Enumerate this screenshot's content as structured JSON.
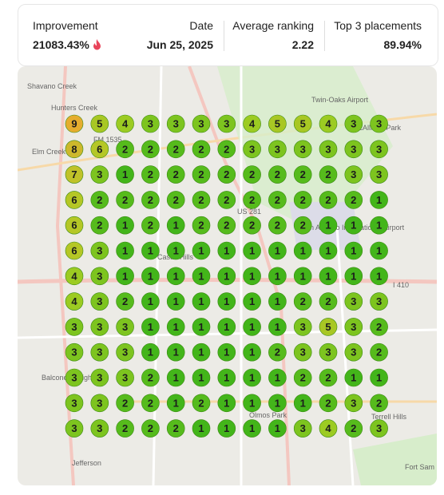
{
  "header": {
    "stats": [
      {
        "label": "Improvement",
        "value": "21083.43%"
      },
      {
        "label": "Date",
        "value": "Jun 25, 2025"
      },
      {
        "label": "Average ranking",
        "value": "2.22"
      },
      {
        "label": "Top 3 placements",
        "value": "89.94%"
      }
    ]
  },
  "map": {
    "labels": [
      "Shavano Creek",
      "Hunters Creek",
      "FM 1535",
      "Elm Creek",
      "Twin-Oaks Airport",
      "McAllister Park",
      "US 281",
      "San Antonio International Airport",
      "Castle Hills",
      "I 410",
      "Balcones Heights",
      "Olmos Park",
      "Terrell Hills",
      "Jefferson",
      "Fort Sam Houston"
    ]
  },
  "grid": {
    "rank_colors": [
      "#43b51a",
      "#56bb1c",
      "#7dc41f",
      "#9ccb22",
      "#a8c724",
      "#b5c726",
      "#c0c229",
      "#cdb82c",
      "#e5ad2e",
      "#e8a42b"
    ],
    "rows": [
      [
        9,
        5,
        4,
        3,
        3,
        3,
        3,
        4,
        5,
        5,
        4,
        3,
        3
      ],
      [
        8,
        6,
        2,
        2,
        2,
        2,
        2,
        3,
        3,
        3,
        3,
        3,
        3
      ],
      [
        7,
        3,
        1,
        2,
        2,
        2,
        2,
        2,
        2,
        2,
        2,
        3,
        3
      ],
      [
        6,
        2,
        2,
        2,
        2,
        2,
        2,
        2,
        2,
        2,
        2,
        2,
        1
      ],
      [
        6,
        2,
        1,
        2,
        1,
        2,
        2,
        2,
        2,
        2,
        1,
        1,
        1
      ],
      [
        6,
        3,
        1,
        1,
        1,
        1,
        1,
        1,
        1,
        1,
        1,
        1,
        1
      ],
      [
        4,
        3,
        1,
        1,
        1,
        1,
        1,
        1,
        1,
        1,
        1,
        1,
        1
      ],
      [
        4,
        3,
        2,
        1,
        1,
        1,
        1,
        1,
        1,
        2,
        2,
        3,
        3
      ],
      [
        3,
        3,
        3,
        1,
        1,
        1,
        1,
        1,
        1,
        3,
        5,
        3,
        2
      ],
      [
        3,
        3,
        3,
        1,
        1,
        1,
        1,
        1,
        2,
        3,
        3,
        3,
        2
      ],
      [
        3,
        3,
        3,
        2,
        1,
        1,
        1,
        1,
        1,
        2,
        2,
        1,
        1
      ],
      [
        3,
        3,
        2,
        2,
        1,
        2,
        1,
        1,
        1,
        1,
        2,
        3,
        2
      ],
      [
        3,
        3,
        2,
        2,
        2,
        1,
        1,
        1,
        1,
        3,
        4,
        2,
        3
      ]
    ]
  }
}
